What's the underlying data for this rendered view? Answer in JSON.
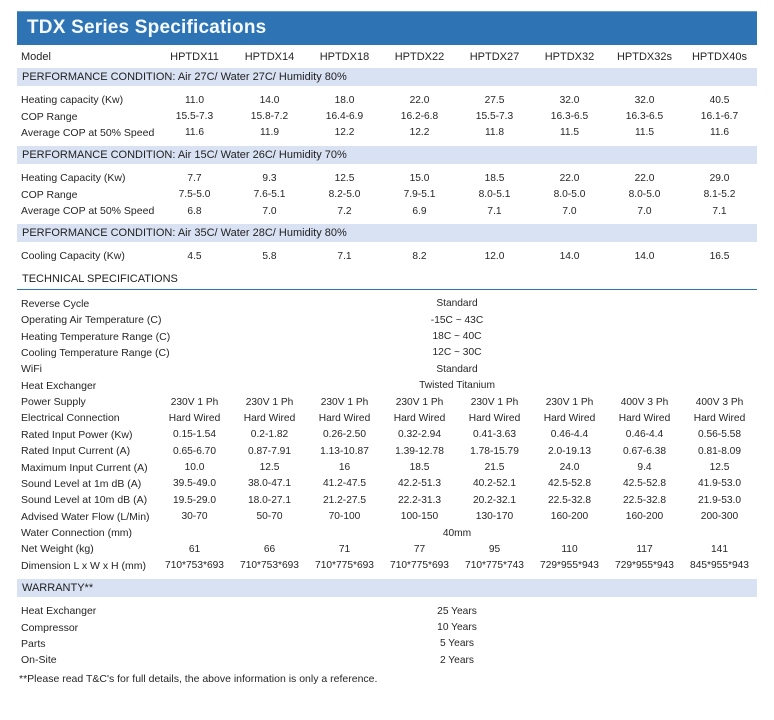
{
  "title": "TDX Series Specifications",
  "colors": {
    "title_bar": "#2E74B5",
    "section_bar": "#D9E2F3",
    "underline": "#2E74B5",
    "text": "#262626"
  },
  "table": {
    "model_label": "Model",
    "models": [
      "HPTDX11",
      "HPTDX14",
      "HPTDX18",
      "HPTDX22",
      "HPTDX27",
      "HPTDX32",
      "HPTDX32s",
      "HPTDX40s"
    ],
    "sections": [
      {
        "header": "PERFORMANCE CONDITION: Air 27C/ Water 27C/ Humidity 80%",
        "style": "bar",
        "rows": [
          {
            "label": "Heating capacity (Kw)",
            "values": [
              "11.0",
              "14.0",
              "18.0",
              "22.0",
              "27.5",
              "32.0",
              "32.0",
              "40.5"
            ]
          },
          {
            "label": "COP Range",
            "values": [
              "15.5-7.3",
              "15.8-7.2",
              "16.4-6.9",
              "16.2-6.8",
              "15.5-7.3",
              "16.3-6.5",
              "16.3-6.5",
              "16.1-6.7"
            ]
          },
          {
            "label": "Average COP at 50% Speed",
            "values": [
              "11.6",
              "11.9",
              "12.2",
              "12.2",
              "11.8",
              "11.5",
              "11.5",
              "11.6"
            ]
          }
        ]
      },
      {
        "header": "PERFORMANCE CONDITION: Air 15C/ Water 26C/ Humidity 70%",
        "style": "bar",
        "rows": [
          {
            "label": "Heating Capacity (Kw)",
            "values": [
              "7.7",
              "9.3",
              "12.5",
              "15.0",
              "18.5",
              "22.0",
              "22.0",
              "29.0"
            ]
          },
          {
            "label": "COP Range",
            "values": [
              "7.5-5.0",
              "7.6-5.1",
              "8.2-5.0",
              "7.9-5.1",
              "8.0-5.1",
              "8.0-5.0",
              "8.0-5.0",
              "8.1-5.2"
            ]
          },
          {
            "label": "Average COP at 50% Speed",
            "values": [
              "6.8",
              "7.0",
              "7.2",
              "6.9",
              "7.1",
              "7.0",
              "7.0",
              "7.1"
            ]
          }
        ]
      },
      {
        "header": "PERFORMANCE CONDITION: Air 35C/ Water 28C/ Humidity 80%",
        "style": "bar",
        "rows": [
          {
            "label": "Cooling Capacity (Kw)",
            "values": [
              "4.5",
              "5.8",
              "7.1",
              "8.2",
              "12.0",
              "14.0",
              "14.0",
              "16.5"
            ]
          }
        ]
      },
      {
        "header": "TECHNICAL SPECIFICATIONS",
        "style": "underline",
        "rows": [
          {
            "label": "Reverse Cycle",
            "span": "Standard"
          },
          {
            "label": "Operating Air Temperature (C)",
            "span": "-15C ~ 43C"
          },
          {
            "label": "Heating Temperature Range (C)",
            "span": "18C ~ 40C"
          },
          {
            "label": "Cooling Temperature Range (C)",
            "span": "12C ~ 30C"
          },
          {
            "label": "WiFi",
            "span": "Standard"
          },
          {
            "label": "Heat Exchanger",
            "span": "Twisted Titanium"
          },
          {
            "label": "Power Supply",
            "values": [
              "230V 1 Ph",
              "230V 1 Ph",
              "230V 1 Ph",
              "230V 1 Ph",
              "230V 1 Ph",
              "230V 1 Ph",
              "400V 3 Ph",
              "400V 3 Ph"
            ]
          },
          {
            "label": "Electrical Connection",
            "values": [
              "Hard Wired",
              "Hard Wired",
              "Hard Wired",
              "Hard Wired",
              "Hard Wired",
              "Hard Wired",
              "Hard Wired",
              "Hard Wired"
            ]
          },
          {
            "label": "Rated Input Power (Kw)",
            "values": [
              "0.15-1.54",
              "0.2-1.82",
              "0.26-2.50",
              "0.32-2.94",
              "0.41-3.63",
              "0.46-4.4",
              "0.46-4.4",
              "0.56-5.58"
            ]
          },
          {
            "label": "Rated Input Current (A)",
            "values": [
              "0.65-6.70",
              "0.87-7.91",
              "1.13-10.87",
              "1.39-12.78",
              "1.78-15.79",
              "2.0-19.13",
              "0.67-6.38",
              "0.81-8.09"
            ]
          },
          {
            "label": "Maximum Input Current (A)",
            "values": [
              "10.0",
              "12.5",
              "16",
              "18.5",
              "21.5",
              "24.0",
              "9.4",
              "12.5"
            ]
          },
          {
            "label": "Sound Level at 1m dB (A)",
            "values": [
              "39.5-49.0",
              "38.0-47.1",
              "41.2-47.5",
              "42.2-51.3",
              "40.2-52.1",
              "42.5-52.8",
              "42.5-52.8",
              "41.9-53.0"
            ]
          },
          {
            "label": "Sound Level at 10m dB (A)",
            "values": [
              "19.5-29.0",
              "18.0-27.1",
              "21.2-27.5",
              "22.2-31.3",
              "20.2-32.1",
              "22.5-32.8",
              "22.5-32.8",
              "21.9-53.0"
            ]
          },
          {
            "label": "Advised Water Flow (L/Min)",
            "values": [
              "30-70",
              "50-70",
              "70-100",
              "100-150",
              "130-170",
              "160-200",
              "160-200",
              "200-300"
            ]
          },
          {
            "label": "Water Connection (mm)",
            "span": "40mm"
          },
          {
            "label": "Net Weight (kg)",
            "values": [
              "61",
              "66",
              "71",
              "77",
              "95",
              "110",
              "117",
              "141"
            ]
          },
          {
            "label": "Dimension L x W x H (mm)",
            "values": [
              "710*753*693",
              "710*753*693",
              "710*775*693",
              "710*775*693",
              "710*775*743",
              "729*955*943",
              "729*955*943",
              "845*955*943"
            ]
          }
        ]
      },
      {
        "header": "WARRANTY**",
        "style": "bar",
        "rows": [
          {
            "label": "Heat Exchanger",
            "span": "25 Years"
          },
          {
            "label": "Compressor",
            "span": "10 Years"
          },
          {
            "label": "Parts",
            "span": "5 Years"
          },
          {
            "label": "On-Site",
            "span": "2 Years"
          }
        ]
      }
    ],
    "footnote": "**Please read T&C's for full details, the above information is only a reference."
  }
}
